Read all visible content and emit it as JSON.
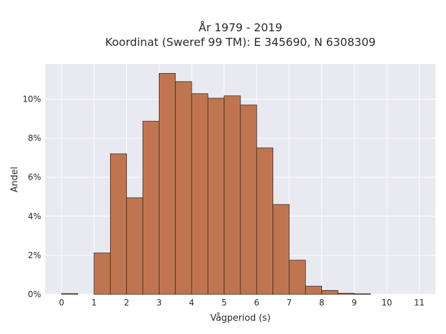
{
  "chart_data": {
    "type": "bar",
    "title_line1": "År 1979 - 2019",
    "title_line2": "Koordinat (Sweref 99 TM): E 345690, N 6308309",
    "xlabel": "Vågperiod (s)",
    "ylabel": "Andel",
    "bin_width": 0.5,
    "bins_start": [
      0,
      0.5,
      1,
      1.5,
      2,
      2.5,
      3,
      3.5,
      4,
      4.5,
      5,
      5.5,
      6,
      6.5,
      7,
      7.5,
      8,
      8.5,
      9,
      9.5
    ],
    "values": [
      0.04,
      0,
      2.12,
      7.2,
      4.95,
      8.87,
      11.32,
      10.9,
      10.28,
      10.05,
      10.17,
      9.7,
      7.5,
      4.6,
      1.75,
      0.42,
      0.2,
      0.06,
      0.03,
      0
    ],
    "xlim": [
      -0.5,
      11.5
    ],
    "ylim": [
      0,
      11.8
    ],
    "xticks": [
      0,
      1,
      2,
      3,
      4,
      5,
      6,
      7,
      8,
      9,
      10,
      11
    ],
    "xtick_labels": [
      "0",
      "1",
      "2",
      "3",
      "4",
      "5",
      "6",
      "7",
      "8",
      "9",
      "10",
      "11"
    ],
    "yticks": [
      0,
      2,
      4,
      6,
      8,
      10
    ],
    "ytick_labels": [
      "0%",
      "2%",
      "4%",
      "6%",
      "8%",
      "10%"
    ],
    "bar_color": "#bf7650",
    "bar_edge_color": "#3a2a20",
    "plot_bg": "#e9e9f1",
    "grid": true
  }
}
